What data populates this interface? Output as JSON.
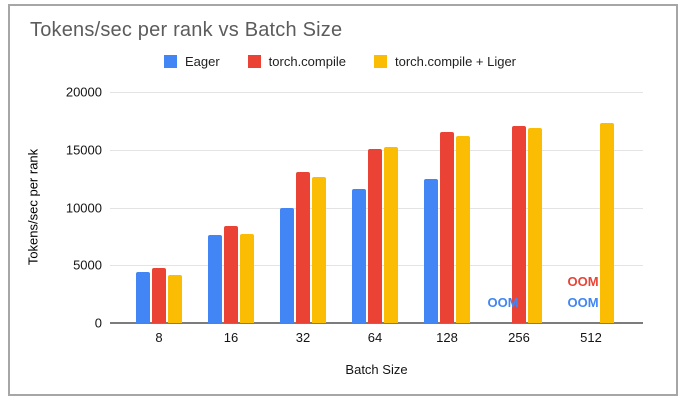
{
  "chart": {
    "title": "Tokens/sec per rank vs Batch Size",
    "legend": [
      {
        "label": "Eager",
        "color": "#4285F4"
      },
      {
        "label": "torch.compile",
        "color": "#EA4335"
      },
      {
        "label": "torch.compile + Liger",
        "color": "#FBBC04"
      }
    ],
    "ylabel": "Tokens/sec per rank",
    "xlabel": "Batch Size",
    "y_ticks": [
      "20000",
      "15000",
      "10000",
      "5000",
      "0"
    ],
    "oom_label": "OOM"
  },
  "chart_data": {
    "type": "bar",
    "title": "Tokens/sec per rank vs Batch Size",
    "categories": [
      "8",
      "16",
      "32",
      "64",
      "128",
      "256",
      "512"
    ],
    "series": [
      {
        "name": "Eager",
        "color": "#4285F4",
        "values": [
          4400,
          7650,
          10000,
          11600,
          12500,
          null,
          null
        ]
      },
      {
        "name": "torch.compile",
        "color": "#EA4335",
        "values": [
          4750,
          8400,
          13100,
          15100,
          16500,
          17100,
          null
        ]
      },
      {
        "name": "torch.compile + Liger",
        "color": "#FBBC04",
        "values": [
          4150,
          7750,
          12600,
          15200,
          16200,
          16900,
          17300
        ]
      }
    ],
    "oom_annotations": [
      {
        "category": "256",
        "series": "Eager",
        "text": "OOM"
      },
      {
        "category": "512",
        "series": "torch.compile",
        "text": "OOM"
      },
      {
        "category": "512",
        "series": "Eager",
        "text": "OOM"
      }
    ],
    "xlabel": "Batch Size",
    "ylabel": "Tokens/sec per rank",
    "ylim": [
      0,
      20000
    ],
    "grid": true,
    "legend_position": "top"
  }
}
